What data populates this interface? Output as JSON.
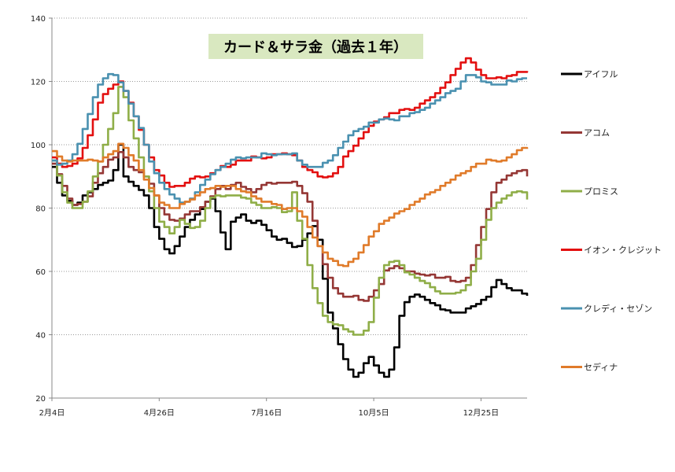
{
  "chart_data": {
    "type": "line",
    "title": "カード＆サラ金（過去１年）",
    "title_bg": "#d9e8c0",
    "ylim": [
      20,
      140
    ],
    "y_ticks": [
      20,
      40,
      60,
      80,
      100,
      120,
      140
    ],
    "x_ticks": [
      "2月4日",
      "4月26日",
      "7月16日",
      "10月5日",
      "12月25日"
    ],
    "grid": "horizontal dotted",
    "legend_position": "right",
    "series": [
      {
        "name": "アイフル",
        "color": "#000000",
        "values": [
          93,
          88,
          84,
          82,
          81,
          82,
          84,
          85,
          86,
          87,
          88,
          89,
          92,
          100,
          90,
          88,
          87,
          86,
          84,
          80,
          74,
          70,
          67,
          66,
          68,
          71,
          74,
          76,
          78,
          80,
          82,
          83,
          79,
          72,
          67,
          76,
          77,
          78,
          76,
          75,
          76,
          75,
          73,
          71,
          70,
          70,
          69,
          68,
          68,
          70,
          72,
          74,
          70,
          58,
          47,
          42,
          37,
          32,
          29,
          27,
          28,
          31,
          33,
          30,
          28,
          27,
          29,
          36,
          46,
          50,
          52,
          53,
          52,
          51,
          50,
          49,
          48,
          48,
          47,
          47,
          47,
          48,
          49,
          50,
          51,
          52,
          55,
          57,
          56,
          55,
          54,
          54,
          53,
          52
        ]
      },
      {
        "name": "アコム",
        "color": "#953735",
        "values": [
          94,
          91,
          87,
          83,
          81,
          81,
          82,
          84,
          88,
          91,
          93,
          95,
          96,
          98,
          96,
          93,
          92,
          91,
          90,
          88,
          84,
          80,
          78,
          76,
          76,
          77,
          78,
          79,
          79,
          80,
          82,
          84,
          86,
          87,
          86,
          87,
          88,
          87,
          86,
          85,
          86,
          87,
          88,
          88,
          88,
          88,
          88,
          88,
          87,
          85,
          82,
          76,
          68,
          62,
          58,
          55,
          53,
          52,
          52,
          52,
          51,
          51,
          52,
          54,
          56,
          60,
          61,
          62,
          61,
          60,
          60,
          59,
          59,
          59,
          59,
          58,
          58,
          58,
          57,
          57,
          57,
          58,
          62,
          68,
          74,
          80,
          85,
          88,
          89,
          90,
          91,
          92,
          92,
          90
        ]
      },
      {
        "name": "プロミス",
        "color": "#8fae48",
        "values": [
          95,
          90,
          85,
          82,
          80,
          80,
          82,
          85,
          90,
          95,
          100,
          105,
          110,
          118,
          115,
          108,
          102,
          96,
          90,
          85,
          80,
          76,
          74,
          72,
          74,
          76,
          75,
          74,
          74,
          76,
          80,
          83,
          84,
          84,
          84,
          84,
          84,
          83,
          83,
          82,
          81,
          80,
          80,
          80,
          80,
          79,
          79,
          85,
          76,
          70,
          62,
          55,
          50,
          46,
          44,
          43,
          43,
          42,
          41,
          40,
          40,
          41,
          44,
          52,
          58,
          62,
          63,
          63,
          62,
          60,
          59,
          58,
          57,
          56,
          55,
          54,
          53,
          53,
          53,
          53,
          54,
          56,
          60,
          64,
          70,
          76,
          80,
          82,
          83,
          84,
          85,
          85,
          85,
          83
        ]
      },
      {
        "name": "イオン・クレジット",
        "color": "#e31010",
        "values": [
          96,
          94,
          93,
          93,
          94,
          96,
          99,
          103,
          108,
          113,
          116,
          118,
          119,
          120,
          117,
          113,
          109,
          105,
          100,
          96,
          92,
          90,
          88,
          87,
          87,
          87,
          88,
          89,
          90,
          90,
          90,
          91,
          92,
          93,
          93,
          94,
          95,
          95,
          95,
          96,
          96,
          96,
          96,
          97,
          97,
          97,
          97,
          97,
          95,
          93,
          92,
          91,
          90,
          90,
          90,
          91,
          93,
          96,
          98,
          100,
          102,
          104,
          106,
          107,
          108,
          109,
          110,
          110,
          111,
          111,
          111,
          112,
          113,
          114,
          115,
          116,
          118,
          120,
          122,
          124,
          126,
          127,
          126,
          124,
          122,
          121,
          121,
          121,
          121,
          122,
          122,
          123,
          123,
          123
        ]
      },
      {
        "name": "クレディ・セゾン",
        "color": "#4a91b0",
        "values": [
          95,
          94,
          94,
          95,
          97,
          100,
          105,
          110,
          115,
          119,
          121,
          122,
          122,
          120,
          117,
          113,
          109,
          105,
          100,
          95,
          91,
          88,
          86,
          84,
          83,
          82,
          82,
          83,
          85,
          87,
          89,
          91,
          92,
          93,
          94,
          95,
          96,
          96,
          96,
          96,
          96,
          97,
          97,
          97,
          97,
          97,
          97,
          97,
          95,
          94,
          93,
          93,
          93,
          94,
          95,
          97,
          99,
          101,
          103,
          104,
          105,
          106,
          107,
          107,
          108,
          108,
          108,
          108,
          109,
          109,
          110,
          110,
          111,
          112,
          113,
          114,
          115,
          116,
          117,
          118,
          120,
          122,
          122,
          121,
          120,
          120,
          119,
          119,
          119,
          120,
          120,
          121,
          121,
          121
        ]
      },
      {
        "name": "セディナ",
        "color": "#e07b2a",
        "values": [
          98,
          96,
          95,
          95,
          95,
          95,
          95,
          95,
          95,
          95,
          96,
          97,
          98,
          100,
          99,
          97,
          95,
          92,
          89,
          86,
          84,
          82,
          81,
          80,
          80,
          81,
          82,
          83,
          84,
          85,
          86,
          86,
          87,
          87,
          87,
          87,
          86,
          85,
          85,
          84,
          83,
          82,
          82,
          81,
          81,
          80,
          80,
          80,
          79,
          77,
          74,
          71,
          68,
          66,
          64,
          63,
          62,
          62,
          63,
          64,
          66,
          68,
          71,
          73,
          75,
          76,
          77,
          78,
          79,
          80,
          81,
          82,
          83,
          84,
          85,
          86,
          87,
          88,
          89,
          90,
          91,
          92,
          93,
          94,
          94,
          95,
          95,
          95,
          95,
          96,
          97,
          98,
          99,
          99
        ]
      }
    ]
  }
}
